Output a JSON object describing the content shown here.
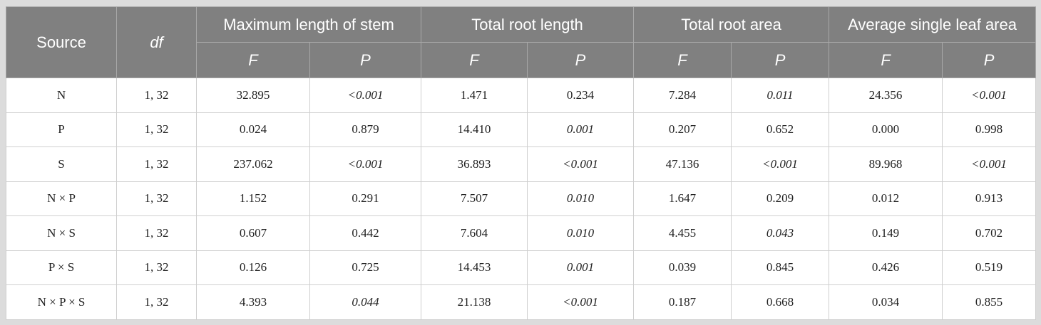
{
  "table": {
    "source_header": "Source",
    "df_header": "df",
    "groups": [
      "Maximum length of stem",
      "Total root length",
      "Total root area",
      "Average single leaf area"
    ],
    "subheaders": [
      "F",
      "P"
    ],
    "rows": [
      [
        "N",
        "1, 32",
        "32.895",
        "<0.001",
        "1.471",
        "0.234",
        "7.284",
        "0.011",
        "24.356",
        "<0.001"
      ],
      [
        "P",
        "1, 32",
        "0.024",
        "0.879",
        "14.410",
        "0.001",
        "0.207",
        "0.652",
        "0.000",
        "0.998"
      ],
      [
        "S",
        "1, 32",
        "237.062",
        "<0.001",
        "36.893",
        "<0.001",
        "47.136",
        "<0.001",
        "89.968",
        "<0.001"
      ],
      [
        "N × P",
        "1, 32",
        "1.152",
        "0.291",
        "7.507",
        "0.010",
        "1.647",
        "0.209",
        "0.012",
        "0.913"
      ],
      [
        "N × S",
        "1, 32",
        "0.607",
        "0.442",
        "7.604",
        "0.010",
        "4.455",
        "0.043",
        "0.149",
        "0.702"
      ],
      [
        "P × S",
        "1, 32",
        "0.126",
        "0.725",
        "14.453",
        "0.001",
        "0.039",
        "0.845",
        "0.426",
        "0.519"
      ],
      [
        "N × P × S",
        "1, 32",
        "4.393",
        "0.044",
        "21.138",
        "<0.001",
        "0.187",
        "0.668",
        "0.034",
        "0.855"
      ]
    ]
  }
}
